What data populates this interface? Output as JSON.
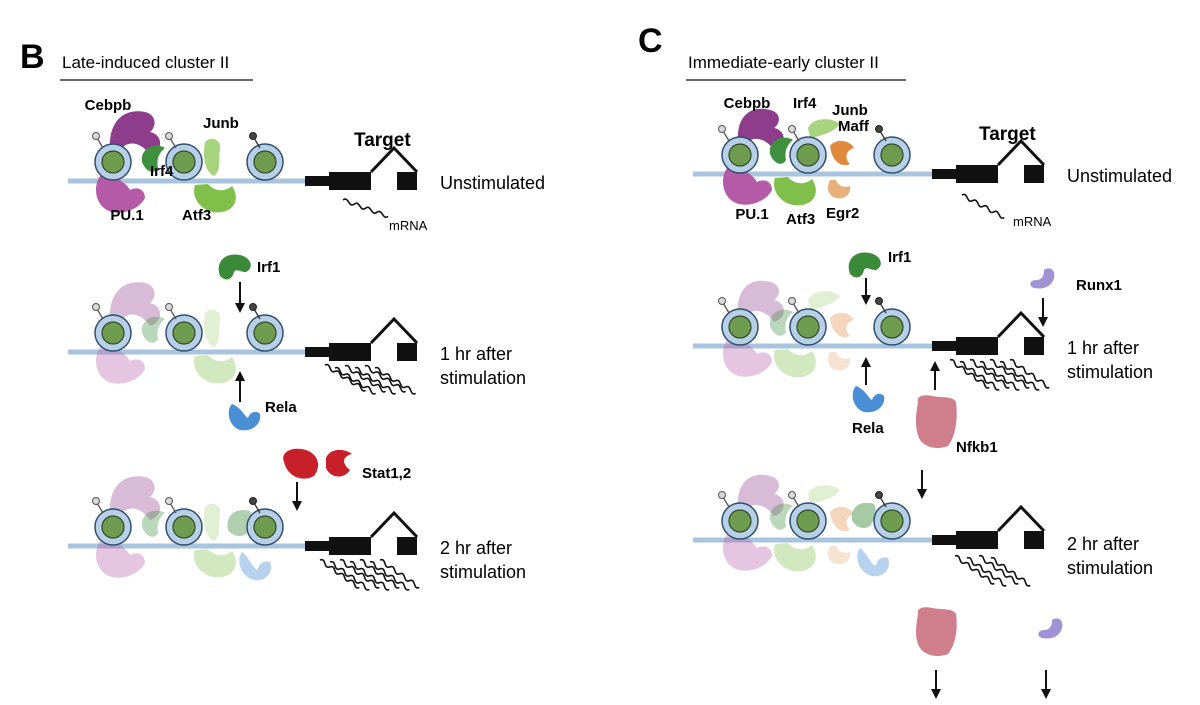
{
  "panels": {
    "b": {
      "letter": "B",
      "title": "Late-induced cluster II",
      "target_label": "Target",
      "mrna_label": "mRNA",
      "states": [
        "Unstimulated",
        "1 hr after",
        "stimulation",
        "2 hr after",
        "stimulation"
      ],
      "factors": {
        "cebpb": "Cebpb",
        "pu1": "PU.1",
        "irf4": "Irf4",
        "junb": "Junb",
        "atf3": "Atf3",
        "irf1": "Irf1",
        "rela": "Rela",
        "stat": "Stat1,2"
      }
    },
    "c": {
      "letter": "C",
      "title": "Immediate-early cluster II",
      "target_label": "Target",
      "mrna_label": "mRNA",
      "states": [
        "Unstimulated",
        "1 hr after",
        "stimulation",
        "2 hr after",
        "stimulation"
      ],
      "factors": {
        "cebpb": "Cebpb",
        "irf4": "Irf4",
        "junb": "Junb",
        "maff": "Maff",
        "pu1": "PU.1",
        "atf3": "Atf3",
        "egr2": "Egr2",
        "irf1": "Irf1",
        "runx1": "Runx1",
        "rela": "Rela",
        "nfkb1": "Nfkb1"
      }
    }
  },
  "colors": {
    "cebpb_pu1": "#8e3d8c",
    "irf4": "#3e8f3e",
    "junb_atf3": "#8cc75c",
    "maff_egr2": "#e08a3e",
    "irf1": "#3a8a3a",
    "rela": "#4a8fd6",
    "stat": "#c8202a",
    "runx1": "#9f93d6",
    "nfkb1": "#cf7e8c",
    "dna": "#a9c4de",
    "nucleosome_outer": "#b4cfe6",
    "nucleosome_inner": "#6e9a4e"
  }
}
